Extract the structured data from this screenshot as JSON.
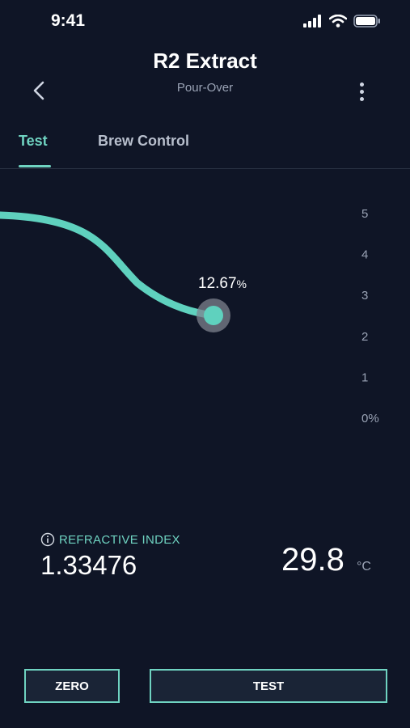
{
  "status_bar": {
    "time": "9:41"
  },
  "header": {
    "title": "R2 Extract",
    "subtitle": "Pour-Over"
  },
  "tabs": [
    {
      "label": "Test",
      "active": true
    },
    {
      "label": "Brew Control",
      "active": false
    }
  ],
  "chart_data": {
    "type": "line",
    "y_ticks": [
      "5",
      "4",
      "3",
      "2",
      "1",
      "0%"
    ],
    "ylim": [
      0,
      5
    ],
    "current_value_label": "12.67",
    "current_value_unit": "%",
    "colors": {
      "line": "#5fd1be",
      "marker_halo": "#8a8f99",
      "tick": "#9aa3b5"
    }
  },
  "reading": {
    "label": "REFRACTIVE INDEX",
    "refractive_index": "1.33476",
    "temperature": "29.8",
    "temperature_unit": "°C"
  },
  "buttons": {
    "zero_label": "ZERO",
    "test_label": "TEST"
  },
  "icons": {
    "back": "chevron-left-icon",
    "more": "more-vertical-icon",
    "info": "info-icon"
  },
  "colors": {
    "background": "#0f1526",
    "accent": "#6fd3c1"
  }
}
